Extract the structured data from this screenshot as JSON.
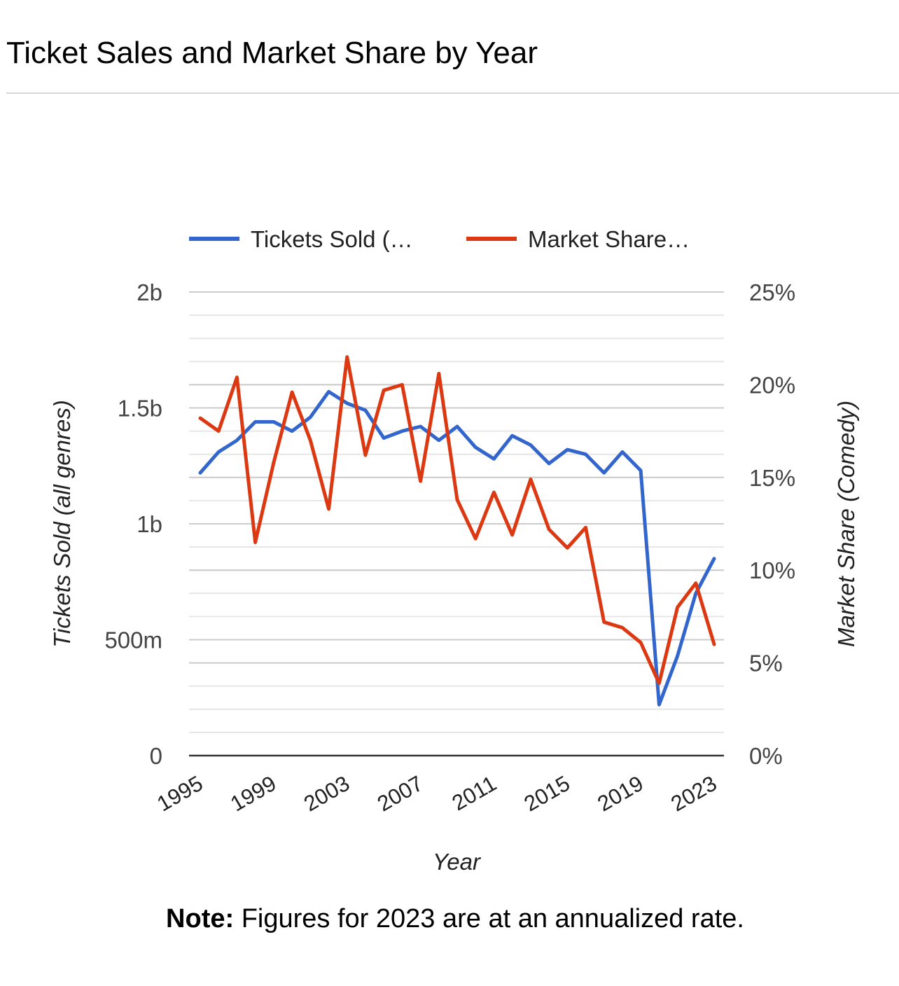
{
  "page": {
    "title": "Ticket Sales and Market Share by Year",
    "note_label": "Note:",
    "note_text": "Figures for 2023 are at an annualized rate."
  },
  "colors": {
    "tickets": "#3366cc",
    "share": "#dc3912",
    "major_grid": "#cccccc",
    "minor_grid": "#e6e6e6",
    "axis_text": "#444444"
  },
  "chart_data": {
    "type": "line",
    "x": [
      1995,
      1996,
      1997,
      1998,
      1999,
      2000,
      2001,
      2002,
      2003,
      2004,
      2005,
      2006,
      2007,
      2008,
      2009,
      2010,
      2011,
      2012,
      2013,
      2014,
      2015,
      2016,
      2017,
      2018,
      2019,
      2020,
      2021,
      2022,
      2023
    ],
    "series": [
      {
        "name": "Tickets Sold (…",
        "axis": "left",
        "values": [
          1220000000.0,
          1310000000.0,
          1360000000.0,
          1440000000.0,
          1440000000.0,
          1400000000.0,
          1460000000.0,
          1570000000.0,
          1520000000.0,
          1490000000.0,
          1370000000.0,
          1400000000.0,
          1420000000.0,
          1360000000.0,
          1420000000.0,
          1330000000.0,
          1280000000.0,
          1380000000.0,
          1340000000.0,
          1260000000.0,
          1320000000.0,
          1300000000.0,
          1220000000.0,
          1310000000.0,
          1230000000.0,
          220000000.0,
          430000000.0,
          700000000.0,
          850000000.0
        ]
      },
      {
        "name": "Market Share…",
        "axis": "right",
        "values": [
          18.2,
          17.5,
          20.4,
          11.5,
          15.8,
          19.6,
          17.0,
          13.3,
          21.5,
          16.2,
          19.7,
          20.0,
          14.8,
          20.6,
          13.8,
          11.7,
          14.2,
          11.9,
          14.9,
          12.2,
          11.2,
          12.3,
          7.2,
          6.9,
          6.1,
          3.9,
          8.0,
          9.3,
          6.0
        ]
      }
    ],
    "xlabel": "Year",
    "ylabel_left": "Tickets Sold (all genres)",
    "ylabel_right": "Market Share (Comedy)",
    "x_ticks": [
      "1995",
      "1999",
      "2003",
      "2007",
      "2011",
      "2015",
      "2019",
      "2023"
    ],
    "y_left_ticks": [
      "0",
      "500m",
      "1b",
      "1.5b",
      "2b"
    ],
    "y_right_ticks": [
      "0%",
      "5%",
      "10%",
      "15%",
      "20%",
      "25%"
    ],
    "ylim_left": [
      0,
      2000000000
    ],
    "ylim_right": [
      0,
      25
    ],
    "legend_position": "top",
    "grid": true
  }
}
